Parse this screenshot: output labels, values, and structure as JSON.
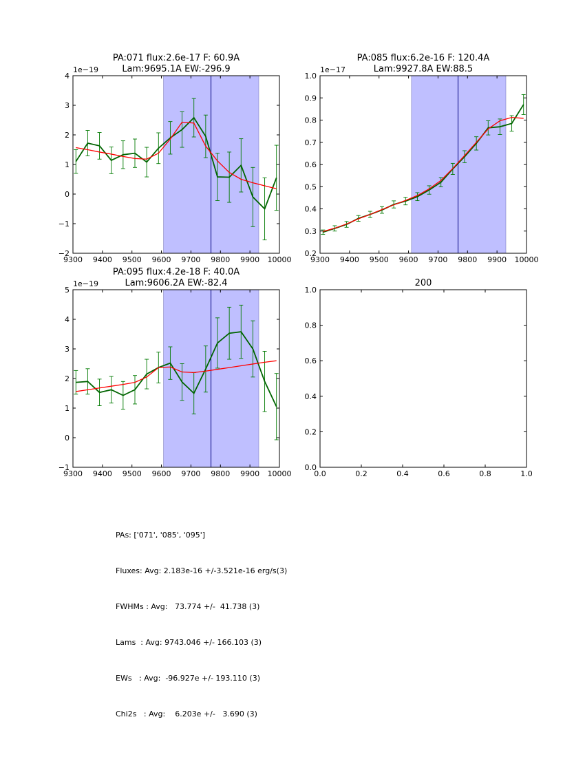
{
  "chart_data": [
    {
      "type": "line",
      "title": [
        "PA:071 flux:2.6e-17 F: 60.9A",
        "Lam:9695.1A EW:-296.9"
      ],
      "x_scale_label": "",
      "y_scale_label": "1e−19",
      "xlim": [
        9300,
        10000
      ],
      "ylim": [
        -2,
        4
      ],
      "xticks": [
        "9300",
        "9400",
        "9500",
        "9600",
        "9700",
        "9800",
        "9900",
        "10000"
      ],
      "yticks": [
        "−2",
        "−1",
        "0",
        "1",
        "2",
        "3",
        "4"
      ],
      "ytick_values": [
        -2,
        -1,
        0,
        1,
        2,
        3,
        4
      ],
      "xtick_values": [
        9300,
        9400,
        9500,
        9600,
        9700,
        9800,
        9900,
        10000
      ],
      "band": [
        9607,
        9930
      ],
      "vline": 9768,
      "x": [
        9310,
        9350,
        9390,
        9430,
        9470,
        9510,
        9550,
        9590,
        9630,
        9670,
        9710,
        9750,
        9790,
        9830,
        9870,
        9910,
        9950,
        9990
      ],
      "series": [
        {
          "name": "data",
          "color": "#006400",
          "values": [
            1.1,
            1.72,
            1.63,
            1.14,
            1.33,
            1.38,
            1.08,
            1.55,
            1.9,
            2.18,
            2.58,
            1.95,
            0.58,
            0.57,
            0.97,
            -0.1,
            -0.5,
            0.55
          ],
          "errors": [
            0.4,
            0.43,
            0.45,
            0.45,
            0.47,
            0.48,
            0.5,
            0.52,
            0.55,
            0.6,
            0.65,
            0.72,
            0.8,
            0.85,
            0.9,
            1.0,
            1.05,
            1.1
          ]
        },
        {
          "name": "fit",
          "color": "#ff0000",
          "values": [
            1.57,
            1.5,
            1.42,
            1.35,
            1.27,
            1.2,
            1.18,
            1.38,
            1.86,
            2.43,
            2.4,
            1.62,
            1.12,
            0.73,
            0.5,
            0.38,
            0.28,
            0.18
          ]
        }
      ]
    },
    {
      "type": "line",
      "title": [
        "PA:085 flux:6.2e-16 F: 120.4A",
        "Lam:9927.8A EW:88.5"
      ],
      "y_scale_label": "1e−17",
      "xlim": [
        9300,
        10000
      ],
      "ylim": [
        0.2,
        1.0
      ],
      "xticks": [
        "9300",
        "9400",
        "9500",
        "9600",
        "9700",
        "9800",
        "9900",
        "10000"
      ],
      "yticks": [
        "0.2",
        "0.3",
        "0.4",
        "0.5",
        "0.6",
        "0.7",
        "0.8",
        "0.9",
        "1.0"
      ],
      "ytick_values": [
        0.2,
        0.3,
        0.4,
        0.5,
        0.6,
        0.7,
        0.8,
        0.9,
        1.0
      ],
      "xtick_values": [
        9300,
        9400,
        9500,
        9600,
        9700,
        9800,
        9900,
        10000
      ],
      "band": [
        9610,
        9930
      ],
      "vline": 9768,
      "x": [
        9310,
        9350,
        9390,
        9430,
        9470,
        9510,
        9550,
        9590,
        9630,
        9670,
        9710,
        9750,
        9790,
        9830,
        9870,
        9910,
        9950,
        9990
      ],
      "series": [
        {
          "name": "data",
          "color": "#006400",
          "values": [
            0.295,
            0.312,
            0.33,
            0.357,
            0.375,
            0.395,
            0.42,
            0.435,
            0.455,
            0.485,
            0.52,
            0.58,
            0.635,
            0.695,
            0.765,
            0.77,
            0.785,
            0.87
          ],
          "errors": [
            0.01,
            0.012,
            0.013,
            0.013,
            0.014,
            0.015,
            0.016,
            0.017,
            0.018,
            0.019,
            0.021,
            0.025,
            0.027,
            0.03,
            0.032,
            0.035,
            0.035,
            0.045
          ]
        },
        {
          "name": "fit",
          "color": "#ff0000",
          "values": [
            0.298,
            0.313,
            0.332,
            0.355,
            0.375,
            0.397,
            0.418,
            0.438,
            0.46,
            0.49,
            0.528,
            0.582,
            0.64,
            0.7,
            0.76,
            0.797,
            0.812,
            0.808
          ]
        }
      ]
    },
    {
      "type": "line",
      "title": [
        "PA:095 flux:4.2e-18 F: 40.0A",
        "Lam:9606.2A EW:-82.4"
      ],
      "y_scale_label": "1e−19",
      "xlim": [
        9300,
        10000
      ],
      "ylim": [
        -1,
        5
      ],
      "xticks": [
        "9300",
        "9400",
        "9500",
        "9600",
        "9700",
        "9800",
        "9900",
        "10000"
      ],
      "yticks": [
        "−1",
        "0",
        "1",
        "2",
        "3",
        "4",
        "5"
      ],
      "ytick_values": [
        -1,
        0,
        1,
        2,
        3,
        4,
        5
      ],
      "xtick_values": [
        9300,
        9400,
        9500,
        9600,
        9700,
        9800,
        9900,
        10000
      ],
      "band": [
        9607,
        9930
      ],
      "vline": 9768,
      "x": [
        9310,
        9350,
        9390,
        9430,
        9470,
        9510,
        9550,
        9590,
        9630,
        9670,
        9710,
        9750,
        9790,
        9830,
        9870,
        9910,
        9950,
        9990
      ],
      "series": [
        {
          "name": "data",
          "color": "#006400",
          "values": [
            1.87,
            1.9,
            1.53,
            1.62,
            1.43,
            1.62,
            2.15,
            2.37,
            2.52,
            1.88,
            1.5,
            2.32,
            3.2,
            3.53,
            3.58,
            3.0,
            1.9,
            1.05
          ],
          "errors": [
            0.4,
            0.43,
            0.45,
            0.45,
            0.47,
            0.48,
            0.5,
            0.52,
            0.55,
            0.62,
            0.7,
            0.78,
            0.85,
            0.88,
            0.9,
            0.95,
            1.02,
            1.12
          ]
        },
        {
          "name": "fit",
          "color": "#ff0000",
          "values": [
            1.56,
            1.62,
            1.68,
            1.74,
            1.8,
            1.87,
            2.05,
            2.37,
            2.39,
            2.22,
            2.2,
            2.25,
            2.31,
            2.37,
            2.43,
            2.49,
            2.55,
            2.6
          ]
        }
      ]
    },
    {
      "type": "line",
      "title": [
        "200"
      ],
      "y_scale_label": "",
      "xlim": [
        0,
        1
      ],
      "ylim": [
        0,
        1
      ],
      "xticks": [
        "0.0",
        "0.2",
        "0.4",
        "0.6",
        "0.8",
        "1.0"
      ],
      "yticks": [
        "0.0",
        "0.2",
        "0.4",
        "0.6",
        "0.8",
        "1.0"
      ],
      "ytick_values": [
        0,
        0.2,
        0.4,
        0.6,
        0.8,
        1.0
      ],
      "xtick_values": [
        0,
        0.2,
        0.4,
        0.6,
        0.8,
        1.0
      ],
      "band": null,
      "vline": null,
      "x": [],
      "series": []
    }
  ],
  "band_color": "#bfbfff",
  "stats": {
    "pas": "PAs: ['071', '085', '095']",
    "fluxes": "Fluxes: Avg: 2.183e-16 +/-3.521e-16 erg/s(3)",
    "fwhms": "FWHMs : Avg:   73.774 +/-  41.738 (3)",
    "lams": "Lams  : Avg: 9743.046 +/- 166.103 (3)",
    "ews": "EWs   : Avg:  -96.927e +/- 193.110 (3)",
    "chi2s": "Chi2s   : Avg:    6.203e +/-   3.690 (3)"
  }
}
